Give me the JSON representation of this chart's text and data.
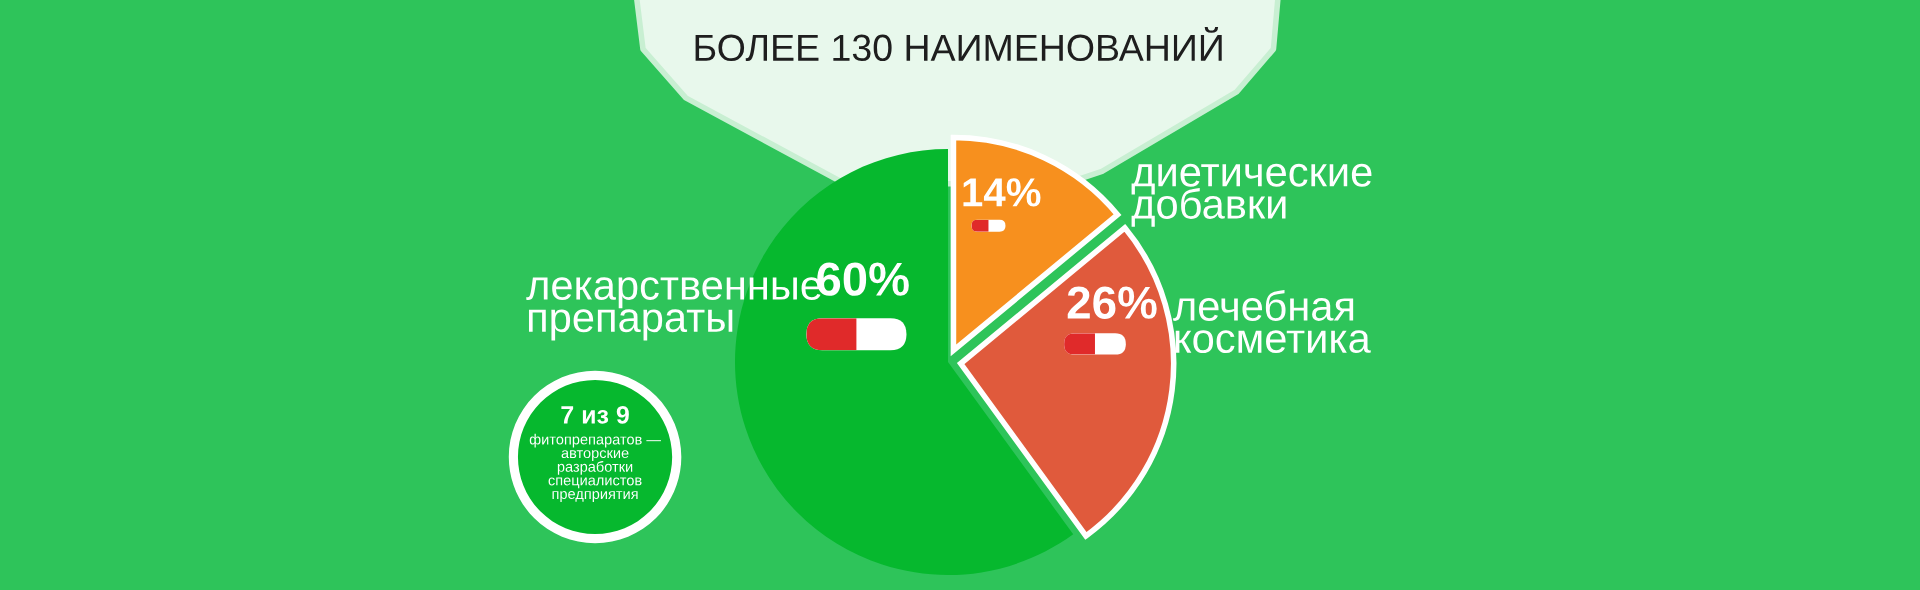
{
  "chart_data": {
    "type": "pie",
    "title": "БОЛЕЕ 130 НАИМЕНОВАНИЙ",
    "categories": [
      "диетические\nдобавки",
      "лечебная\nкосметика",
      "лекарственные\nпрепараты"
    ],
    "values": [
      14,
      26,
      60
    ],
    "colors": [
      "#f7901e",
      "#e05a3c",
      "#06b82e"
    ],
    "value_labels": [
      "14%",
      "26%",
      "60%"
    ],
    "annotations": [
      "7 из 9",
      "фитопрепаратов —\nавторские\nразработки\nспециалистов\nпредприятия"
    ]
  }
}
